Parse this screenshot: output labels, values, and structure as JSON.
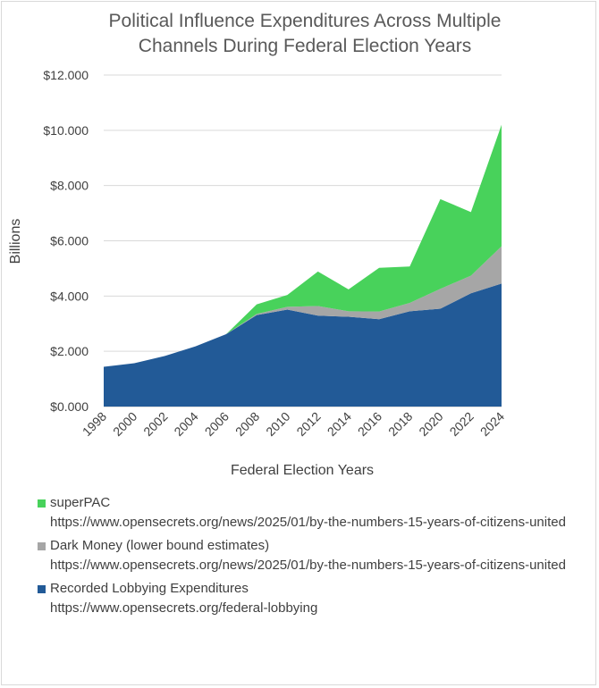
{
  "chart_data": {
    "type": "area",
    "stacked": true,
    "title_lines": [
      "Political Influence Expenditures Across Multiple",
      "Channels During Federal Election Years"
    ],
    "xlabel": "Federal Election Years",
    "ylabel": "Billions",
    "x": [
      "1998",
      "2000",
      "2002",
      "2004",
      "2006",
      "2008",
      "2010",
      "2012",
      "2014",
      "2016",
      "2018",
      "2020",
      "2022",
      "2024"
    ],
    "yticks": [
      "$0.000",
      "$2.000",
      "$4.000",
      "$6.000",
      "$8.000",
      "$10.000",
      "$12.000"
    ],
    "ylim": [
      0,
      12
    ],
    "grid": true,
    "legend_position": "bottom",
    "series": [
      {
        "name": "Recorded Lobbying Expenditures",
        "source": "https://www.opensecrets.org/federal-lobbying",
        "color": "#225a97",
        "values": [
          1.44,
          1.57,
          1.83,
          2.18,
          2.62,
          3.31,
          3.51,
          3.29,
          3.25,
          3.16,
          3.45,
          3.54,
          4.1,
          4.45
        ]
      },
      {
        "name": "Dark Money (lower bound estimates)",
        "source": "https://www.opensecrets.org/news/2025/01/by-the-numbers-15-years-of-citizens-united",
        "color": "#a6a6a6",
        "values": [
          0,
          0,
          0,
          0,
          0,
          0.04,
          0.1,
          0.35,
          0.2,
          0.28,
          0.3,
          0.72,
          0.64,
          1.35
        ]
      },
      {
        "name": "superPAC",
        "source": "https://www.opensecrets.org/news/2025/01/by-the-numbers-15-years-of-citizens-united",
        "color": "#48d25b",
        "values": [
          0,
          0,
          0,
          0,
          0,
          0.35,
          0.43,
          1.25,
          0.79,
          1.58,
          1.32,
          3.25,
          2.3,
          4.4
        ]
      }
    ]
  }
}
